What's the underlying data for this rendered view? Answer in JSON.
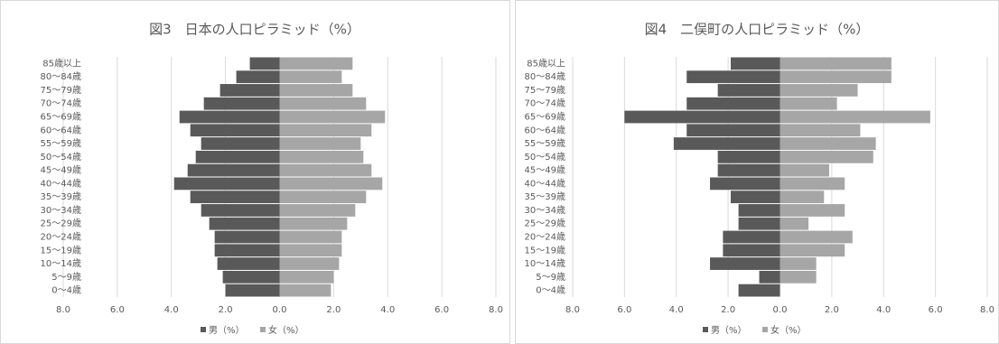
{
  "chart_data": [
    {
      "type": "pyramid",
      "title": "図3　日本の人口ピラミッド（%）",
      "categories": [
        "85歳以上",
        "80～84歳",
        "75～79歳",
        "70～74歳",
        "65～69歳",
        "60～64歳",
        "55～59歳",
        "50～54歳",
        "45～49歳",
        "40～44歳",
        "35～39歳",
        "30～34歳",
        "25～29歳",
        "20～24歳",
        "15～19歳",
        "10～14歳",
        "5～9歳",
        "0～4歳"
      ],
      "series": [
        {
          "name": "男（%）",
          "color": "#595959",
          "values": [
            -1.1,
            -1.6,
            -2.2,
            -2.8,
            -3.7,
            -3.3,
            -2.9,
            -3.1,
            -3.4,
            -3.9,
            -3.3,
            -2.9,
            -2.6,
            -2.4,
            -2.4,
            -2.3,
            -2.1,
            -2.0
          ]
        },
        {
          "name": "女（%）",
          "color": "#a6a6a6",
          "values": [
            2.7,
            2.3,
            2.7,
            3.2,
            3.9,
            3.4,
            3.0,
            3.1,
            3.4,
            3.8,
            3.2,
            2.8,
            2.5,
            2.3,
            2.3,
            2.2,
            2.0,
            1.9
          ]
        }
      ],
      "xlim": [
        -8,
        8
      ],
      "xticks": [
        {
          "value": -8,
          "label": "8.0"
        },
        {
          "value": -6,
          "label": "6.0"
        },
        {
          "value": -4,
          "label": "4.0"
        },
        {
          "value": -2,
          "label": "2.0"
        },
        {
          "value": 0,
          "label": "0.0"
        },
        {
          "value": 2,
          "label": "2.0"
        },
        {
          "value": 4,
          "label": "4.0"
        },
        {
          "value": 6,
          "label": "6.0"
        },
        {
          "value": 8,
          "label": "8.0"
        }
      ],
      "grid": true,
      "legend": "bottom"
    },
    {
      "type": "pyramid",
      "title": "図4　二俣町の人口ピラミッド（%）",
      "categories": [
        "85歳以上",
        "80～84歳",
        "75～79歳",
        "70～74歳",
        "65～69歳",
        "60～64歳",
        "55～59歳",
        "50～54歳",
        "45～49歳",
        "40～44歳",
        "35～39歳",
        "30～34歳",
        "25～29歳",
        "20～24歳",
        "15～19歳",
        "10～14歳",
        "5～9歳",
        "0～4歳"
      ],
      "series": [
        {
          "name": "男（%）",
          "color": "#595959",
          "values": [
            -1.9,
            -3.6,
            -2.4,
            -3.6,
            -6.0,
            -3.6,
            -4.1,
            -2.4,
            -2.4,
            -2.7,
            -1.9,
            -1.6,
            -1.6,
            -2.2,
            -2.2,
            -2.7,
            -0.8,
            -1.6
          ]
        },
        {
          "name": "女（%）",
          "color": "#a6a6a6",
          "values": [
            4.3,
            4.3,
            3.0,
            2.2,
            5.8,
            3.1,
            3.7,
            3.6,
            1.9,
            2.5,
            1.7,
            2.5,
            1.1,
            2.8,
            2.5,
            1.4,
            1.4,
            0
          ]
        }
      ],
      "xlim": [
        -8,
        8
      ],
      "xticks": [
        {
          "value": -8,
          "label": "8.0"
        },
        {
          "value": -6,
          "label": "6.0"
        },
        {
          "value": -4,
          "label": "4.0"
        },
        {
          "value": -2,
          "label": "2.0"
        },
        {
          "value": 0,
          "label": "0.0"
        },
        {
          "value": 2,
          "label": "2.0"
        },
        {
          "value": 4,
          "label": "4.0"
        },
        {
          "value": 6,
          "label": "6.0"
        },
        {
          "value": 8,
          "label": "8.0"
        }
      ],
      "grid": true,
      "legend": "bottom"
    }
  ]
}
